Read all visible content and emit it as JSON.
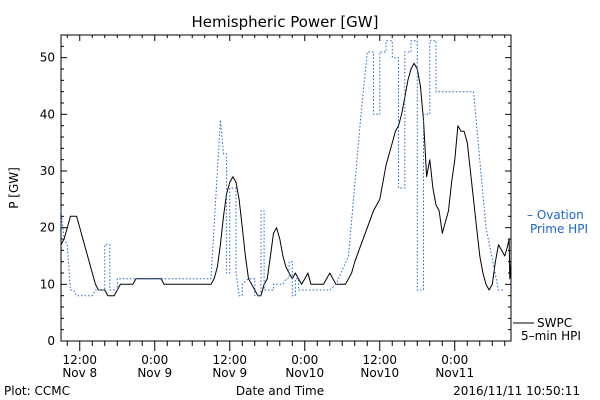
{
  "chart_data": {
    "type": "line",
    "title": "Hemispheric Power [GW]",
    "xlabel": "Date and Time",
    "ylabel": "P [GW]",
    "ylim": [
      0,
      54
    ],
    "xlim": [
      9.0,
      81.0
    ],
    "y_ticks": [
      0,
      10,
      20,
      30,
      40,
      50
    ],
    "x_ticks": [
      {
        "x": 12,
        "line1": "12:00",
        "line2": "Nov 8"
      },
      {
        "x": 24,
        "line1": "0:00",
        "line2": "Nov 9"
      },
      {
        "x": 36,
        "line1": "12:00",
        "line2": "Nov 9"
      },
      {
        "x": 48,
        "line1": "0:00",
        "line2": "Nov10"
      },
      {
        "x": 60,
        "line1": "12:00",
        "line2": "Nov10"
      },
      {
        "x": 72,
        "line1": "0:00",
        "line2": "Nov11"
      }
    ],
    "grid": false,
    "series": [
      {
        "name": "SWPC 5-min HPI",
        "color": "#000000",
        "style": "solid",
        "points": [
          [
            9.0,
            17
          ],
          [
            9.5,
            18
          ],
          [
            10.0,
            20
          ],
          [
            10.5,
            22
          ],
          [
            11.5,
            22
          ],
          [
            12.0,
            20
          ],
          [
            13.0,
            16
          ],
          [
            14.0,
            12
          ],
          [
            14.5,
            10
          ],
          [
            15.0,
            9
          ],
          [
            16.0,
            9
          ],
          [
            16.5,
            8
          ],
          [
            17.5,
            8
          ],
          [
            18.0,
            9
          ],
          [
            18.5,
            10
          ],
          [
            19.5,
            10
          ],
          [
            20.5,
            10
          ],
          [
            21.0,
            11
          ],
          [
            22.0,
            11
          ],
          [
            23.0,
            11
          ],
          [
            25.0,
            11
          ],
          [
            25.5,
            10
          ],
          [
            27.0,
            10
          ],
          [
            30.0,
            10
          ],
          [
            33.0,
            10
          ],
          [
            33.5,
            11
          ],
          [
            34.0,
            13
          ],
          [
            34.5,
            17
          ],
          [
            35.0,
            22
          ],
          [
            35.5,
            26
          ],
          [
            36.0,
            28
          ],
          [
            36.5,
            29
          ],
          [
            37.0,
            28
          ],
          [
            37.5,
            25
          ],
          [
            38.0,
            20
          ],
          [
            38.5,
            15
          ],
          [
            39.0,
            11
          ],
          [
            39.5,
            10
          ],
          [
            40.0,
            9
          ],
          [
            40.5,
            8
          ],
          [
            41.0,
            8
          ],
          [
            41.5,
            10
          ],
          [
            42.0,
            11
          ],
          [
            42.5,
            15
          ],
          [
            43.0,
            19
          ],
          [
            43.5,
            20
          ],
          [
            44.0,
            18
          ],
          [
            44.5,
            15
          ],
          [
            45.0,
            13
          ],
          [
            45.5,
            12
          ],
          [
            46.0,
            11
          ],
          [
            46.5,
            12
          ],
          [
            47.0,
            11
          ],
          [
            47.5,
            10
          ],
          [
            48.0,
            11
          ],
          [
            48.5,
            12
          ],
          [
            49.0,
            10
          ],
          [
            50.0,
            10
          ],
          [
            51.0,
            10
          ],
          [
            51.5,
            11
          ],
          [
            52.0,
            12
          ],
          [
            52.5,
            11
          ],
          [
            53.0,
            10
          ],
          [
            54.5,
            10
          ],
          [
            55.0,
            11
          ],
          [
            55.5,
            12
          ],
          [
            56.0,
            14
          ],
          [
            57.0,
            17
          ],
          [
            58.0,
            20
          ],
          [
            59.0,
            23
          ],
          [
            60.0,
            25
          ],
          [
            60.5,
            28
          ],
          [
            61.0,
            31
          ],
          [
            62.0,
            35
          ],
          [
            62.5,
            37
          ],
          [
            63.0,
            38
          ],
          [
            63.5,
            40
          ],
          [
            64.0,
            43
          ],
          [
            64.5,
            46
          ],
          [
            65.0,
            48
          ],
          [
            65.5,
            49
          ],
          [
            66.0,
            48
          ],
          [
            66.5,
            45
          ],
          [
            67.0,
            39
          ],
          [
            67.5,
            29
          ],
          [
            68.0,
            32
          ],
          [
            68.5,
            27
          ],
          [
            69.0,
            24
          ],
          [
            69.5,
            23
          ],
          [
            70.0,
            19
          ],
          [
            70.5,
            21
          ],
          [
            71.0,
            23
          ],
          [
            71.5,
            28
          ],
          [
            72.0,
            32
          ],
          [
            72.5,
            38
          ],
          [
            73.0,
            37
          ],
          [
            73.5,
            37
          ],
          [
            74.0,
            35
          ],
          [
            74.5,
            30
          ],
          [
            75.0,
            25
          ],
          [
            75.5,
            20
          ],
          [
            76.0,
            15
          ],
          [
            76.5,
            12
          ],
          [
            77.0,
            10
          ],
          [
            77.5,
            9
          ],
          [
            78.0,
            10
          ],
          [
            78.5,
            14
          ],
          [
            79.0,
            17
          ],
          [
            79.5,
            16
          ],
          [
            80.0,
            15
          ],
          [
            80.5,
            17
          ],
          [
            80.7,
            18
          ],
          [
            80.8,
            11
          ],
          [
            81.0,
            14
          ]
        ]
      },
      {
        "name": "Ovation Prime HPI",
        "color": "#1f66c8",
        "style": "dotted",
        "points": [
          [
            9.0,
            23
          ],
          [
            9.5,
            18
          ],
          [
            10.0,
            17
          ],
          [
            10.5,
            9
          ],
          [
            11.0,
            9
          ],
          [
            11.5,
            8
          ],
          [
            14.0,
            8
          ],
          [
            14.5,
            9
          ],
          [
            16.0,
            9
          ],
          [
            16.0,
            17
          ],
          [
            16.8,
            17
          ],
          [
            16.8,
            9
          ],
          [
            18.0,
            9
          ],
          [
            18.0,
            11
          ],
          [
            24.0,
            11
          ],
          [
            26.0,
            11
          ],
          [
            27.5,
            11
          ],
          [
            33.0,
            11
          ],
          [
            34.5,
            39
          ],
          [
            35.0,
            33
          ],
          [
            35.5,
            33
          ],
          [
            35.5,
            12
          ],
          [
            36.0,
            12
          ],
          [
            36.0,
            27
          ],
          [
            37.0,
            27
          ],
          [
            37.0,
            12
          ],
          [
            37.5,
            8
          ],
          [
            38.0,
            8
          ],
          [
            38.0,
            10
          ],
          [
            39.0,
            11
          ],
          [
            40.0,
            11
          ],
          [
            40.0,
            8
          ],
          [
            41.0,
            8
          ],
          [
            41.0,
            23
          ],
          [
            41.5,
            23
          ],
          [
            41.5,
            9
          ],
          [
            43.0,
            9
          ],
          [
            43.0,
            10
          ],
          [
            44.5,
            10
          ],
          [
            45.0,
            11
          ],
          [
            45.5,
            11
          ],
          [
            45.5,
            14
          ],
          [
            46.0,
            14
          ],
          [
            46.0,
            8
          ],
          [
            46.5,
            8
          ],
          [
            46.5,
            11
          ],
          [
            47.0,
            11
          ],
          [
            47.0,
            9
          ],
          [
            49.0,
            9
          ],
          [
            52.0,
            9
          ],
          [
            53.0,
            10
          ],
          [
            55.0,
            15
          ],
          [
            57.0,
            40
          ],
          [
            58.0,
            51
          ],
          [
            59.0,
            51
          ],
          [
            59.0,
            40
          ],
          [
            60.0,
            40
          ],
          [
            60.0,
            51
          ],
          [
            61.0,
            51
          ],
          [
            61.0,
            53
          ],
          [
            62.0,
            53
          ],
          [
            62.0,
            50
          ],
          [
            63.0,
            50
          ],
          [
            63.0,
            27
          ],
          [
            64.0,
            27
          ],
          [
            64.0,
            51
          ],
          [
            65.0,
            51
          ],
          [
            65.0,
            53
          ],
          [
            66.0,
            53
          ],
          [
            66.0,
            9
          ],
          [
            67.0,
            9
          ],
          [
            67.0,
            40
          ],
          [
            68.0,
            40
          ],
          [
            68.0,
            53
          ],
          [
            69.0,
            53
          ],
          [
            69.0,
            44
          ],
          [
            75.0,
            44
          ],
          [
            77.0,
            20
          ],
          [
            79.0,
            9
          ],
          [
            80.0,
            9
          ]
        ]
      }
    ]
  },
  "legend": {
    "ovation_line1": "– Ovation",
    "ovation_line2": "Prime HPI",
    "swpc_line1": "SWPC",
    "swpc_line2": "5–min HPI"
  },
  "footer": {
    "plot_credit": "Plot: CCMC",
    "timestamp": "2016/11/11  10:50:11"
  }
}
